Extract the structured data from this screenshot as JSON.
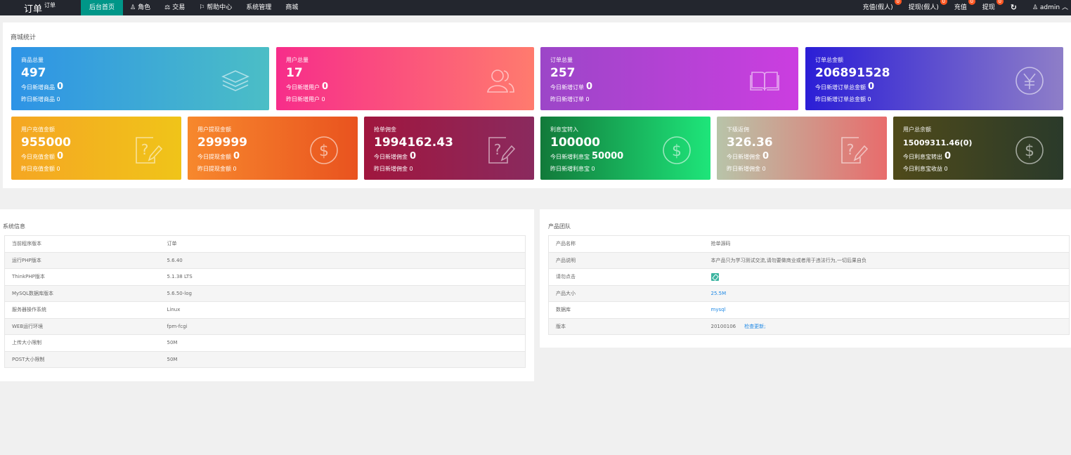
{
  "topbar": {
    "logo": "订单",
    "logo_sup": "订单",
    "nav": [
      {
        "label": "后台首页",
        "icon": "",
        "active": true
      },
      {
        "label": "角色",
        "icon": "user-icon"
      },
      {
        "label": "交易",
        "icon": "balance-icon"
      },
      {
        "label": "帮助中心",
        "icon": "flag-icon"
      },
      {
        "label": "系统管理",
        "icon": ""
      },
      {
        "label": "商城",
        "icon": ""
      }
    ],
    "right": [
      {
        "label": "充值(假人)",
        "badge": "0"
      },
      {
        "label": "提现(假人)",
        "badge": "0"
      },
      {
        "label": "充值",
        "badge": "0"
      },
      {
        "label": "提现",
        "badge": "0"
      }
    ],
    "refresh_icon": "refresh-icon",
    "admin": "admin"
  },
  "stats": {
    "title": "商城统计",
    "row1": [
      {
        "title": "商品总量",
        "value": "497",
        "today_label": "今日新增商品",
        "today_value": "0",
        "yesterday": "昨日新增商品 0",
        "icon": "layers-icon",
        "color": "linear-gradient(90deg,#2e93e6,#4bbec6)"
      },
      {
        "title": "用户总量",
        "value": "17",
        "today_label": "今日新增用户",
        "today_value": "0",
        "yesterday": "昨日新增用户 0",
        "icon": "users-icon",
        "color": "linear-gradient(90deg,#f72d8a,#ff7b6e)"
      },
      {
        "title": "订单总量",
        "value": "257",
        "today_label": "今日新增订单",
        "today_value": "0",
        "yesterday": "昨日新增订单 0",
        "icon": "book-icon",
        "color": "linear-gradient(90deg,#9c46c8,#cb3ee0)"
      },
      {
        "title": "订单总金额",
        "value": "206891528",
        "today_label": "今日新增订单总金额",
        "today_value": "0",
        "yesterday": "昨日新增订单总金额 0",
        "icon": "yen-icon",
        "color": "linear-gradient(90deg,#2b1ed6,#8e7ec8)"
      }
    ],
    "row2": [
      {
        "title": "用户充值金额",
        "value": "955000",
        "today_label": "今日充值金额",
        "today_value": "0",
        "yesterday": "昨日充值金额 0",
        "icon": "edit-icon",
        "color": "linear-gradient(90deg,#f5a623,#f0c419)"
      },
      {
        "title": "用户提现金额",
        "value": "299999",
        "today_label": "今日提现金额",
        "today_value": "0",
        "yesterday": "昨日提现金额 0",
        "icon": "dollar-icon",
        "color": "linear-gradient(90deg,#f7882d,#e9531f)"
      },
      {
        "title": "抢单佣金",
        "value": "1994162.43",
        "today_label": "今日新增佣金",
        "today_value": "0",
        "yesterday": "昨日新增佣金 0",
        "icon": "edit-icon",
        "color": "linear-gradient(90deg,#a0163e,#8a2a5e)"
      },
      {
        "title": "利息宝转入",
        "value": "100000",
        "today_label": "今日新增利息宝",
        "today_value": "50000",
        "yesterday": "昨日新增利息宝 0",
        "icon": "dollar-icon",
        "color": "linear-gradient(90deg,#127a3a,#1ee57a)"
      },
      {
        "title": "下级返佣",
        "value": "326.36",
        "today_label": "今日新增佣金",
        "today_value": "0",
        "yesterday": "昨日新增佣金 0",
        "icon": "edit-icon",
        "color": "linear-gradient(90deg,#b8c4a9,#e86c6c)"
      },
      {
        "title": "用户总余额",
        "value": "15009311.46(0)",
        "today_label": "今日利息宝转出",
        "today_value": "0",
        "yesterday": "今日利息宝收益 0",
        "icon": "dollar-icon",
        "color": "linear-gradient(90deg,#4f4a1a,#2a3a2a)",
        "small": true
      }
    ]
  },
  "system": {
    "title": "系统信息",
    "rows": [
      [
        "当前程序版本",
        "订单"
      ],
      [
        "运行PHP版本",
        "5.6.40"
      ],
      [
        "ThinkPHP版本",
        "5.1.38 LTS"
      ],
      [
        "MySQL数据库版本",
        "5.6.50-log"
      ],
      [
        "服务器操作系统",
        "Linux"
      ],
      [
        "WEB运行环境",
        "fpm-fcgi"
      ],
      [
        "上传大小限制",
        "50M"
      ],
      [
        "POST大小限制",
        "50M"
      ]
    ]
  },
  "product": {
    "title": "产品团队",
    "rows": [
      {
        "label": "产品名称",
        "value": "抢单源码"
      },
      {
        "label": "产品说明",
        "value": "本产品只为学习测试交流,请勿要做商业或者用于违法行为,一切后果自负"
      },
      {
        "label": "请勿点击",
        "value": "",
        "icon": "image-icon"
      },
      {
        "label": "产品大小",
        "value": "25.5M",
        "link": true
      },
      {
        "label": "数据库",
        "value": "mysql",
        "link": true
      },
      {
        "label": "版本",
        "value": "20100106",
        "extra": "检查更新;"
      }
    ]
  }
}
